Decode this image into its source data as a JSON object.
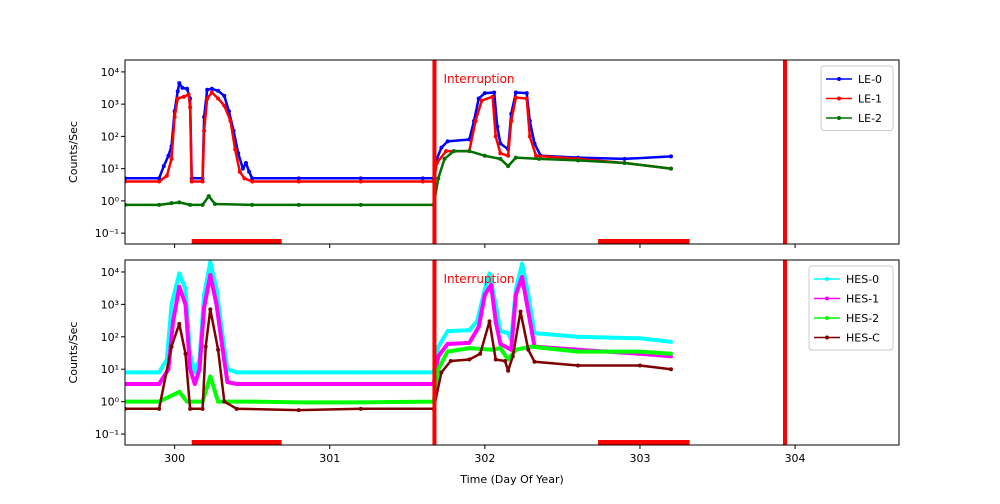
{
  "chart_data": [
    {
      "type": "line",
      "panel": "top",
      "ylabel": "Counts/Sec",
      "yscale": "log",
      "ylim": [
        0.046,
        23400
      ],
      "xlim": [
        299.68,
        304.67
      ],
      "xticks": [
        "300",
        "301",
        "302",
        "303",
        "304"
      ],
      "yticks": [
        {
          "v": 0.1,
          "label": "10⁻¹"
        },
        {
          "v": 1,
          "label": "10⁰"
        },
        {
          "v": 10,
          "label": "10¹"
        },
        {
          "v": 100,
          "label": "10²"
        },
        {
          "v": 1000,
          "label": "10³"
        },
        {
          "v": 10000,
          "label": "10⁴"
        }
      ],
      "legend_position": "top-right",
      "annotation": "Interruption",
      "interruption_lines": [
        301.675,
        303.935
      ],
      "interruption_bars": [
        [
          300.11,
          300.69
        ],
        [
          302.73,
          303.32
        ]
      ],
      "series": [
        {
          "name": "LE-0",
          "color": "#0000ff",
          "points": [
            [
              299.68,
              5
            ],
            [
              299.9,
              5
            ],
            [
              299.93,
              12
            ],
            [
              299.96,
              25
            ],
            [
              299.98,
              50
            ],
            [
              300.0,
              600
            ],
            [
              300.02,
              2500
            ],
            [
              300.03,
              4500
            ],
            [
              300.05,
              3200
            ],
            [
              300.08,
              3000
            ],
            [
              300.1,
              1500
            ],
            [
              300.11,
              5
            ],
            [
              300.18,
              5
            ],
            [
              300.19,
              400
            ],
            [
              300.21,
              2800
            ],
            [
              300.24,
              3000
            ],
            [
              300.28,
              2600
            ],
            [
              300.32,
              1800
            ],
            [
              300.35,
              600
            ],
            [
              300.38,
              150
            ],
            [
              300.41,
              30
            ],
            [
              300.44,
              10
            ],
            [
              300.46,
              15
            ],
            [
              300.48,
              8
            ],
            [
              300.5,
              5
            ],
            [
              300.8,
              5
            ],
            [
              301.2,
              5
            ],
            [
              301.6,
              5
            ],
            [
              301.67,
              5
            ],
            [
              301.69,
              20
            ],
            [
              301.72,
              45
            ],
            [
              301.76,
              70
            ],
            [
              301.9,
              80
            ],
            [
              301.93,
              300
            ],
            [
              301.96,
              1500
            ],
            [
              302.0,
              2200
            ],
            [
              302.06,
              2300
            ],
            [
              302.08,
              200
            ],
            [
              302.1,
              60
            ],
            [
              302.15,
              40
            ],
            [
              302.17,
              500
            ],
            [
              302.2,
              2300
            ],
            [
              302.27,
              2200
            ],
            [
              302.29,
              300
            ],
            [
              302.32,
              60
            ],
            [
              302.36,
              25
            ],
            [
              302.6,
              22
            ],
            [
              302.9,
              20
            ],
            [
              303.2,
              24
            ]
          ]
        },
        {
          "name": "LE-1",
          "color": "#ff0000",
          "points": [
            [
              299.68,
              4
            ],
            [
              299.9,
              4
            ],
            [
              299.95,
              6
            ],
            [
              299.98,
              20
            ],
            [
              300.0,
              400
            ],
            [
              300.02,
              1500
            ],
            [
              300.06,
              1700
            ],
            [
              300.09,
              2000
            ],
            [
              300.1,
              800
            ],
            [
              300.11,
              4
            ],
            [
              300.18,
              4
            ],
            [
              300.19,
              150
            ],
            [
              300.21,
              1500
            ],
            [
              300.24,
              2300
            ],
            [
              300.28,
              1500
            ],
            [
              300.32,
              900
            ],
            [
              300.36,
              300
            ],
            [
              300.39,
              40
            ],
            [
              300.42,
              8
            ],
            [
              300.45,
              5
            ],
            [
              300.5,
              4
            ],
            [
              300.8,
              4
            ],
            [
              301.2,
              4
            ],
            [
              301.6,
              4
            ],
            [
              301.67,
              4
            ],
            [
              301.69,
              15
            ],
            [
              301.75,
              35
            ],
            [
              301.9,
              35
            ],
            [
              301.94,
              300
            ],
            [
              301.98,
              1300
            ],
            [
              302.05,
              1700
            ],
            [
              302.07,
              100
            ],
            [
              302.1,
              30
            ],
            [
              302.15,
              25
            ],
            [
              302.17,
              300
            ],
            [
              302.2,
              1600
            ],
            [
              302.27,
              1500
            ],
            [
              302.29,
              100
            ],
            [
              302.33,
              25
            ],
            [
              302.6,
              20
            ],
            [
              302.9,
              15
            ],
            [
              303.2,
              10
            ]
          ]
        },
        {
          "name": "LE-2",
          "color": "#007000",
          "points": [
            [
              299.68,
              0.75
            ],
            [
              299.9,
              0.75
            ],
            [
              299.98,
              0.85
            ],
            [
              300.03,
              0.9
            ],
            [
              300.1,
              0.75
            ],
            [
              300.18,
              0.75
            ],
            [
              300.22,
              1.4
            ],
            [
              300.26,
              0.8
            ],
            [
              300.5,
              0.75
            ],
            [
              300.8,
              0.75
            ],
            [
              301.2,
              0.75
            ],
            [
              301.67,
              0.75
            ],
            [
              301.7,
              5
            ],
            [
              301.74,
              20
            ],
            [
              301.8,
              35
            ],
            [
              301.9,
              35
            ],
            [
              302.0,
              25
            ],
            [
              302.1,
              20
            ],
            [
              302.15,
              12
            ],
            [
              302.2,
              22
            ],
            [
              302.35,
              20
            ],
            [
              302.6,
              18
            ],
            [
              302.9,
              15
            ],
            [
              303.2,
              10
            ]
          ]
        }
      ]
    },
    {
      "type": "line",
      "panel": "bottom",
      "ylabel": "Counts/Sec",
      "xlabel": "Time (Day Of Year)",
      "yscale": "log",
      "ylim": [
        0.046,
        23400
      ],
      "xlim": [
        299.68,
        304.67
      ],
      "xticks": [
        "300",
        "301",
        "302",
        "303",
        "304"
      ],
      "yticks": [
        {
          "v": 0.1,
          "label": "10⁻¹"
        },
        {
          "v": 1,
          "label": "10⁰"
        },
        {
          "v": 10,
          "label": "10¹"
        },
        {
          "v": 100,
          "label": "10²"
        },
        {
          "v": 1000,
          "label": "10³"
        },
        {
          "v": 10000,
          "label": "10⁴"
        }
      ],
      "legend_position": "top-right",
      "annotation": "Interruption",
      "interruption_lines": [
        301.675,
        303.935
      ],
      "interruption_bars": [
        [
          300.11,
          300.69
        ],
        [
          302.73,
          303.32
        ]
      ],
      "series": [
        {
          "name": "HES-0",
          "color": "#00ffff",
          "points": [
            [
              299.68,
              8
            ],
            [
              299.9,
              8
            ],
            [
              299.95,
              20
            ],
            [
              299.98,
              1000
            ],
            [
              300.03,
              9000
            ],
            [
              300.07,
              3000
            ],
            [
              300.1,
              30
            ],
            [
              300.13,
              8
            ],
            [
              300.16,
              20
            ],
            [
              300.19,
              2000
            ],
            [
              300.23,
              20000
            ],
            [
              300.27,
              3000
            ],
            [
              300.31,
              100
            ],
            [
              300.34,
              10
            ],
            [
              300.4,
              8
            ],
            [
              300.8,
              8
            ],
            [
              301.2,
              8
            ],
            [
              301.67,
              8
            ],
            [
              301.7,
              50
            ],
            [
              301.76,
              150
            ],
            [
              301.9,
              160
            ],
            [
              301.95,
              300
            ],
            [
              302.0,
              3000
            ],
            [
              302.03,
              9000
            ],
            [
              302.07,
              1000
            ],
            [
              302.1,
              150
            ],
            [
              302.15,
              130
            ],
            [
              302.17,
              80
            ],
            [
              302.2,
              3000
            ],
            [
              302.24,
              18000
            ],
            [
              302.28,
              2000
            ],
            [
              302.32,
              130
            ],
            [
              302.6,
              100
            ],
            [
              303.0,
              90
            ],
            [
              303.2,
              70
            ]
          ]
        },
        {
          "name": "HES-1",
          "color": "#ff00ff",
          "points": [
            [
              299.68,
              3.5
            ],
            [
              299.9,
              3.5
            ],
            [
              299.96,
              10
            ],
            [
              299.99,
              300
            ],
            [
              300.03,
              3500
            ],
            [
              300.07,
              1000
            ],
            [
              300.1,
              10
            ],
            [
              300.13,
              3.5
            ],
            [
              300.16,
              10
            ],
            [
              300.19,
              800
            ],
            [
              300.23,
              8000
            ],
            [
              300.27,
              1000
            ],
            [
              300.31,
              40
            ],
            [
              300.34,
              4
            ],
            [
              300.4,
              3.5
            ],
            [
              300.8,
              3.5
            ],
            [
              301.2,
              3.5
            ],
            [
              301.67,
              3.5
            ],
            [
              301.7,
              25
            ],
            [
              301.76,
              60
            ],
            [
              301.9,
              65
            ],
            [
              301.96,
              200
            ],
            [
              302.0,
              2000
            ],
            [
              302.04,
              4000
            ],
            [
              302.07,
              300
            ],
            [
              302.1,
              60
            ],
            [
              302.17,
              40
            ],
            [
              302.2,
              2000
            ],
            [
              302.24,
              7000
            ],
            [
              302.28,
              600
            ],
            [
              302.32,
              50
            ],
            [
              302.6,
              40
            ],
            [
              303.0,
              30
            ],
            [
              303.2,
              25
            ]
          ]
        },
        {
          "name": "HES-2",
          "color": "#00ff00",
          "points": [
            [
              299.68,
              1
            ],
            [
              299.9,
              1
            ],
            [
              300.03,
              2
            ],
            [
              300.08,
              1
            ],
            [
              300.18,
              1
            ],
            [
              300.23,
              6
            ],
            [
              300.28,
              1
            ],
            [
              300.5,
              1
            ],
            [
              300.8,
              0.95
            ],
            [
              301.2,
              0.95
            ],
            [
              301.67,
              1
            ],
            [
              301.7,
              10
            ],
            [
              301.76,
              35
            ],
            [
              301.9,
              45
            ],
            [
              302.05,
              40
            ],
            [
              302.1,
              45
            ],
            [
              302.15,
              20
            ],
            [
              302.2,
              40
            ],
            [
              302.3,
              50
            ],
            [
              302.6,
              35
            ],
            [
              303.0,
              35
            ],
            [
              303.2,
              30
            ]
          ]
        },
        {
          "name": "HES-C",
          "color": "#7f0000",
          "points": [
            [
              299.68,
              0.6
            ],
            [
              299.9,
              0.6
            ],
            [
              299.98,
              50
            ],
            [
              300.03,
              250
            ],
            [
              300.07,
              30
            ],
            [
              300.1,
              0.6
            ],
            [
              300.18,
              0.6
            ],
            [
              300.2,
              50
            ],
            [
              300.23,
              700
            ],
            [
              300.28,
              40
            ],
            [
              300.32,
              1
            ],
            [
              300.4,
              0.6
            ],
            [
              300.8,
              0.55
            ],
            [
              301.2,
              0.6
            ],
            [
              301.67,
              0.6
            ],
            [
              301.72,
              8
            ],
            [
              301.78,
              18
            ],
            [
              301.9,
              20
            ],
            [
              301.97,
              30
            ],
            [
              302.03,
              300
            ],
            [
              302.07,
              20
            ],
            [
              302.13,
              18
            ],
            [
              302.15,
              9
            ],
            [
              302.18,
              25
            ],
            [
              302.23,
              600
            ],
            [
              302.28,
              40
            ],
            [
              302.32,
              17
            ],
            [
              302.6,
              13
            ],
            [
              303.0,
              13
            ],
            [
              303.2,
              10
            ]
          ]
        }
      ]
    }
  ]
}
